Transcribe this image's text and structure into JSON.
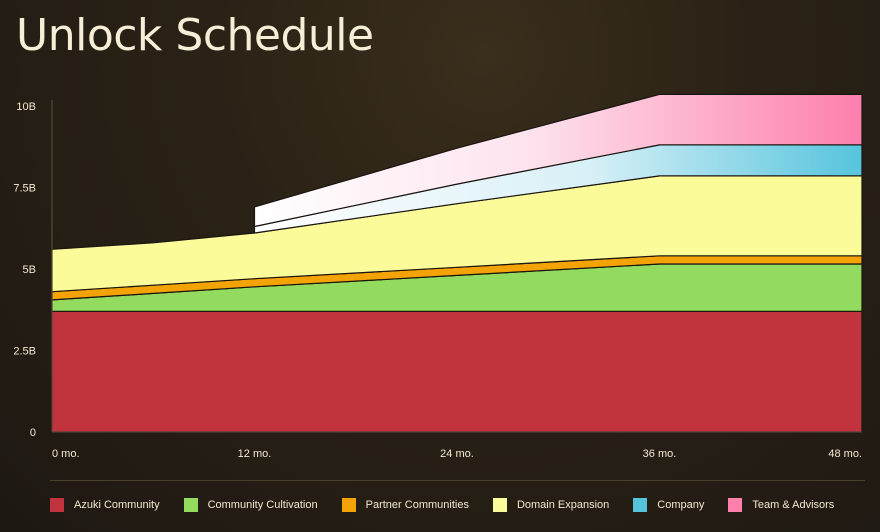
{
  "title": "Unlock Schedule",
  "chart_data": {
    "type": "area",
    "title": "Unlock Schedule",
    "stacked": true,
    "x": [
      0,
      6,
      12,
      24,
      36,
      48
    ],
    "x_tick_values": [
      0,
      12,
      24,
      36,
      48
    ],
    "x_tick_labels": [
      "0 mo.",
      "12 mo.",
      "24 mo.",
      "36 mo.",
      "48 mo."
    ],
    "y_tick_values": [
      0,
      2.5,
      5,
      7.5,
      10
    ],
    "y_tick_labels": [
      "0",
      "2.5B",
      "5B",
      "7.5B",
      "10B"
    ],
    "ylim": [
      0,
      10.3
    ],
    "xlim": [
      0,
      48
    ],
    "grid": false,
    "legend_position": "bottom",
    "series": [
      {
        "name": "Azuki Community",
        "color": "#c1343e",
        "values": [
          3.7,
          3.7,
          3.7,
          3.7,
          3.7,
          3.7
        ]
      },
      {
        "name": "Community Cultivation",
        "color": "#93db5e",
        "values": [
          0.35,
          0.55,
          0.75,
          1.1,
          1.45,
          1.45
        ]
      },
      {
        "name": "Partner Communities",
        "color": "#f3a404",
        "values": [
          0.25,
          0.25,
          0.25,
          0.25,
          0.25,
          0.25
        ]
      },
      {
        "name": "Domain Expansion",
        "color": "#fcfb9a",
        "values": [
          1.3,
          1.3,
          1.4,
          1.95,
          2.45,
          2.45
        ]
      },
      {
        "name": "Company",
        "color": "#56c4dd",
        "values": [
          null,
          null,
          0.2,
          0.6,
          0.95,
          0.95
        ]
      },
      {
        "name": "Team & Advisors",
        "color": "#fd7fac",
        "values": [
          null,
          null,
          0.6,
          1.1,
          1.55,
          1.55
        ]
      }
    ]
  }
}
